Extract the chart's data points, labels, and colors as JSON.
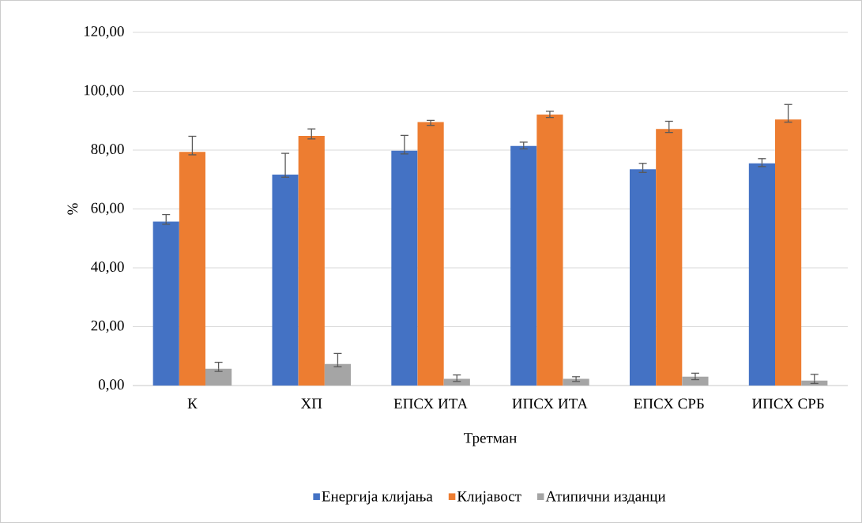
{
  "chart_data": {
    "type": "bar",
    "xlabel": "Третман",
    "ylabel": "%",
    "categories": [
      "К",
      "ХП",
      "ЕПСХ ИТА",
      "ИПСХ ИТА",
      "ЕПСХ СРБ",
      "ИПСХ СРБ"
    ],
    "series": [
      {
        "name": "Енергија клијања",
        "color": "#4472c4",
        "values": [
          55.7,
          71.7,
          79.8,
          81.4,
          73.5,
          75.5
        ],
        "errors": [
          [
            54.8,
            58.1
          ],
          [
            70.8,
            78.9
          ],
          [
            78.7,
            85.0
          ],
          [
            80.4,
            82.7
          ],
          [
            72.4,
            75.5
          ],
          [
            74.4,
            77.1
          ]
        ]
      },
      {
        "name": "Клијавост",
        "color": "#ed7d31",
        "values": [
          79.4,
          84.8,
          89.5,
          92.1,
          87.2,
          90.4
        ],
        "errors": [
          [
            78.4,
            84.7
          ],
          [
            83.8,
            87.2
          ],
          [
            88.4,
            90.1
          ],
          [
            91.1,
            93.2
          ],
          [
            86.0,
            89.8
          ],
          [
            89.5,
            95.5
          ]
        ]
      },
      {
        "name": "Атипични изданци",
        "color": "#a5a5a5",
        "values": [
          5.7,
          7.3,
          2.3,
          2.3,
          3.0,
          1.7
        ],
        "errors": [
          [
            4.8,
            7.9
          ],
          [
            6.4,
            10.9
          ],
          [
            1.4,
            3.6
          ],
          [
            1.4,
            3.0
          ],
          [
            2.0,
            4.2
          ],
          [
            0.7,
            3.8
          ]
        ]
      }
    ],
    "ylim": [
      0,
      120
    ],
    "yticks": [
      {
        "value": 0,
        "label": "0,00"
      },
      {
        "value": 20,
        "label": "20,00"
      },
      {
        "value": 40,
        "label": "40,00"
      },
      {
        "value": 60,
        "label": "60,00"
      },
      {
        "value": 80,
        "label": "80,00"
      },
      {
        "value": 100,
        "label": "100,00"
      },
      {
        "value": 120,
        "label": "120,00"
      }
    ],
    "grid": "y",
    "legend": "bottom"
  }
}
